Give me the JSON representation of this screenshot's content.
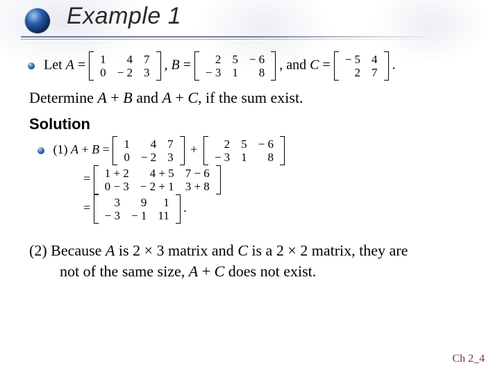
{
  "title": "Example 1",
  "let_text": "Let ",
  "define": {
    "A_label": "A",
    "B_label": "B",
    "C_label": "C",
    "A": [
      [
        "1",
        "4",
        "7"
      ],
      [
        "0",
        "− 2",
        "3"
      ]
    ],
    "B": [
      [
        "2",
        "5",
        "− 6"
      ],
      [
        "− 3",
        "1",
        "8"
      ]
    ],
    "C": [
      [
        "− 5",
        "4"
      ],
      [
        "2",
        "7"
      ]
    ]
  },
  "question_parts": {
    "p1": "Determine ",
    "A": "A",
    "plus1": " + ",
    "B": "B",
    "and": " and ",
    "A2": "A",
    "plus2": " + ",
    "C": "C",
    "rest": ", if the sum exist."
  },
  "solution_label": "Solution",
  "solution": {
    "part1_prefix": "(1) ",
    "AplusB_label_A": "A",
    "AplusB_label_plus": " + ",
    "AplusB_label_B": "B",
    "AplusB_label_eq": " = ",
    "A": [
      [
        "1",
        "4",
        "7"
      ],
      [
        "0",
        "− 2",
        "3"
      ]
    ],
    "plus_sym": "+",
    "B": [
      [
        "2",
        "5",
        "− 6"
      ],
      [
        "− 3",
        "1",
        "8"
      ]
    ],
    "eq2_prefix": "= ",
    "sum_expr": [
      [
        "1 + 2",
        "4 + 5",
        "7 − 6"
      ],
      [
        "0 − 3",
        "− 2 + 1",
        "3 + 8"
      ]
    ],
    "eq3_prefix": "= ",
    "result": [
      [
        "3",
        "9",
        "1"
      ],
      [
        "− 3",
        "− 1",
        "11"
      ]
    ],
    "period": "."
  },
  "part2": {
    "line1_a": "(2) Because ",
    "A": "A",
    "line1_b": " is 2 × 3 matrix and ",
    "C": "C",
    "line1_c": " is a 2 × 2 matrix, they are",
    "line2_a": "not of the same size, ",
    "A2": "A",
    "plus": " + ",
    "C2": "C",
    "line2_b": " does not exist."
  },
  "footer": "Ch 2_4"
}
